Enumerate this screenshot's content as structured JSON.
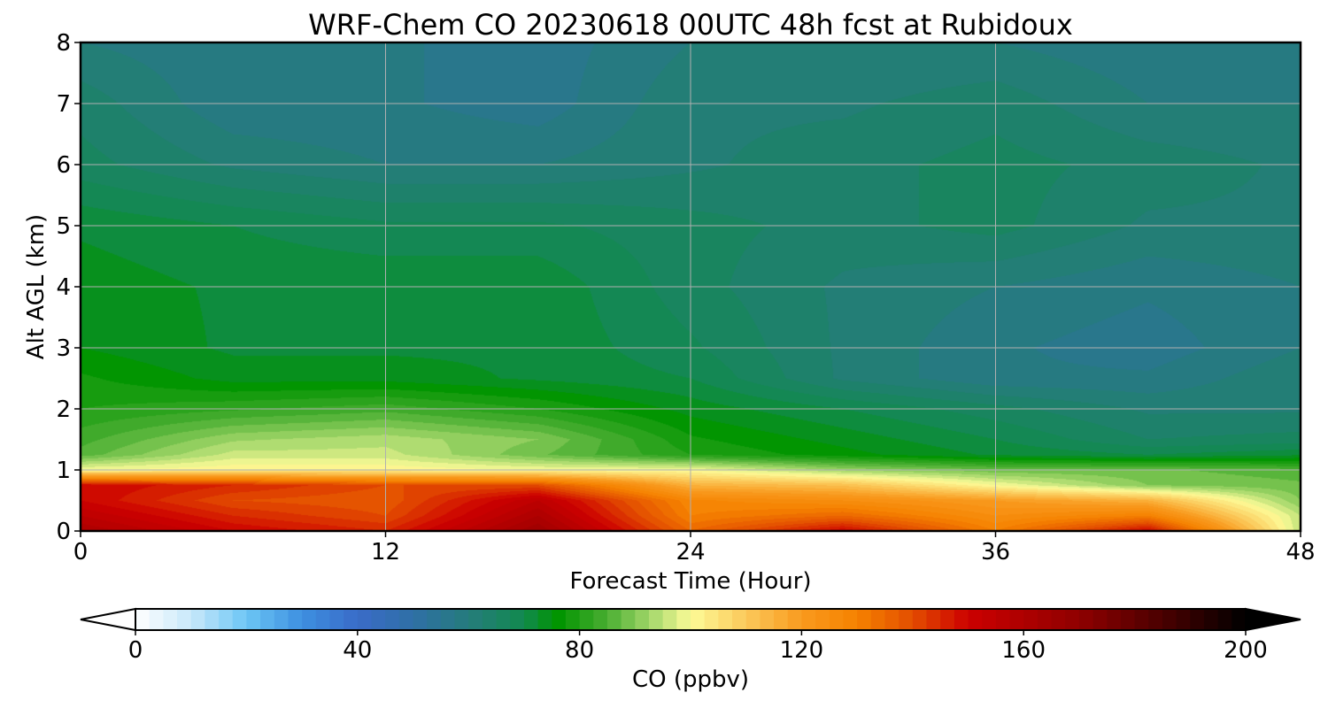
{
  "chart_data": {
    "type": "heatmap",
    "title": "WRF-Chem CO  20230618 00UTC 48h fcst at Rubidoux",
    "xlabel": "Forecast Time (Hour)",
    "ylabel": "Alt AGL (km)",
    "xlim": [
      0,
      48
    ],
    "ylim": [
      0,
      8
    ],
    "x_ticks": [
      "0",
      "12",
      "24",
      "36",
      "48"
    ],
    "y_ticks": [
      "0",
      "1",
      "2",
      "3",
      "4",
      "5",
      "6",
      "7",
      "8"
    ],
    "grid": true,
    "x": [
      0,
      6,
      12,
      18,
      24,
      30,
      36,
      42,
      48
    ],
    "y": [
      0,
      0.25,
      0.5,
      0.75,
      1.0,
      1.25,
      1.5,
      2.0,
      2.5,
      3.0,
      4.0,
      5.0,
      6.0,
      7.0,
      8.0
    ],
    "z": [
      [
        160,
        150,
        145,
        165,
        135,
        150,
        130,
        150,
        95
      ],
      [
        155,
        145,
        140,
        160,
        130,
        135,
        125,
        130,
        95
      ],
      [
        150,
        140,
        138,
        155,
        128,
        125,
        120,
        115,
        90
      ],
      [
        150,
        145,
        140,
        140,
        115,
        112,
        100,
        90,
        88
      ],
      [
        100,
        102,
        102,
        100,
        100,
        92,
        88,
        88,
        86
      ],
      [
        86,
        96,
        96,
        88,
        80,
        76,
        72,
        70,
        72
      ],
      [
        84,
        92,
        94,
        90,
        78,
        74,
        70,
        65,
        66
      ],
      [
        80,
        82,
        84,
        80,
        74,
        70,
        66,
        62,
        62
      ],
      [
        78,
        74,
        74,
        72,
        70,
        62,
        58,
        58,
        62
      ],
      [
        75,
        72,
        72,
        72,
        68,
        62,
        58,
        56,
        60
      ],
      [
        74,
        72,
        72,
        72,
        66,
        62,
        60,
        58,
        60
      ],
      [
        72,
        70,
        68,
        68,
        66,
        64,
        66,
        62,
        62
      ],
      [
        66,
        62,
        60,
        60,
        62,
        64,
        66,
        64,
        62
      ],
      [
        64,
        58,
        58,
        56,
        62,
        62,
        64,
        60,
        60
      ],
      [
        60,
        58,
        58,
        56,
        60,
        60,
        60,
        58,
        58
      ]
    ],
    "colorbar": {
      "label": "CO  (ppbv)",
      "min": 0,
      "max": 200,
      "ticks": [
        "0",
        "40",
        "80",
        "120",
        "160",
        "200"
      ],
      "extend": "both",
      "stops": [
        {
          "v": 0,
          "c": "#ffffff"
        },
        {
          "v": 10,
          "c": "#c8e8fa"
        },
        {
          "v": 20,
          "c": "#6cc6f5"
        },
        {
          "v": 30,
          "c": "#3d8fe0"
        },
        {
          "v": 40,
          "c": "#3a6cc8"
        },
        {
          "v": 50,
          "c": "#2f6fa6"
        },
        {
          "v": 60,
          "c": "#257c7c"
        },
        {
          "v": 70,
          "c": "#128a4e"
        },
        {
          "v": 76,
          "c": "#009400"
        },
        {
          "v": 85,
          "c": "#4aae32"
        },
        {
          "v": 93,
          "c": "#a6d86c"
        },
        {
          "v": 100,
          "c": "#fdfb98"
        },
        {
          "v": 110,
          "c": "#fbc95a"
        },
        {
          "v": 120,
          "c": "#f99a1e"
        },
        {
          "v": 130,
          "c": "#f58200"
        },
        {
          "v": 140,
          "c": "#e34d00"
        },
        {
          "v": 150,
          "c": "#cc0000"
        },
        {
          "v": 170,
          "c": "#8f0000"
        },
        {
          "v": 185,
          "c": "#4a0000"
        },
        {
          "v": 200,
          "c": "#000000"
        }
      ]
    }
  }
}
